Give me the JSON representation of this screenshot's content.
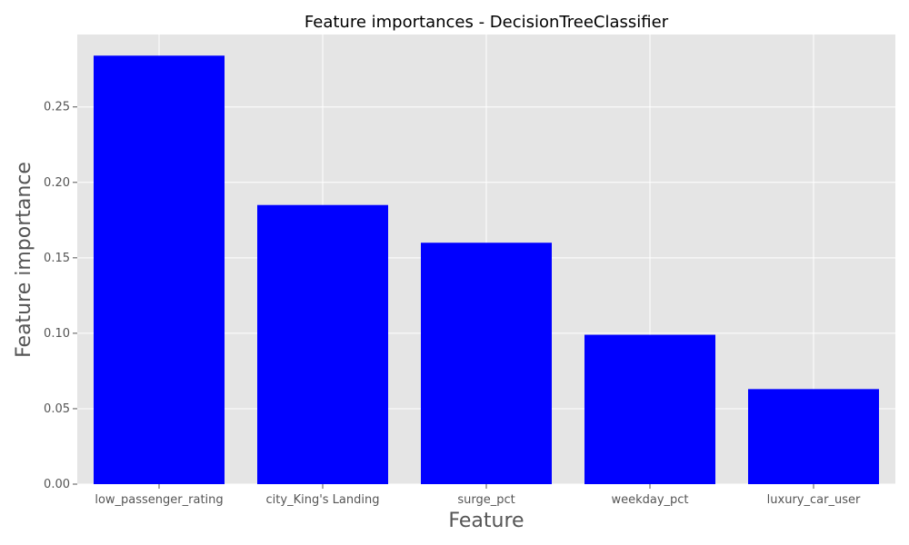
{
  "chart_data": {
    "type": "bar",
    "title": "Feature importances - DecisionTreeClassifier",
    "xlabel": "Feature",
    "ylabel": "Feature importance",
    "categories": [
      "low_passenger_rating",
      "city_King's Landing",
      "surge_pct",
      "weekday_pct",
      "luxury_car_user"
    ],
    "values": [
      0.284,
      0.185,
      0.16,
      0.099,
      0.063
    ],
    "ylim": [
      0,
      0.298
    ],
    "yticks": [
      0.0,
      0.05,
      0.1,
      0.15,
      0.2,
      0.25
    ],
    "ytick_labels": [
      "0.00",
      "0.05",
      "0.10",
      "0.15",
      "0.20",
      "0.25"
    ],
    "grid": true,
    "colors": {
      "bar": "#0000ff",
      "plot_background": "#e5e5e5",
      "grid": "#ffffff",
      "tick_text": "#555555",
      "title_text": "#000000"
    }
  }
}
